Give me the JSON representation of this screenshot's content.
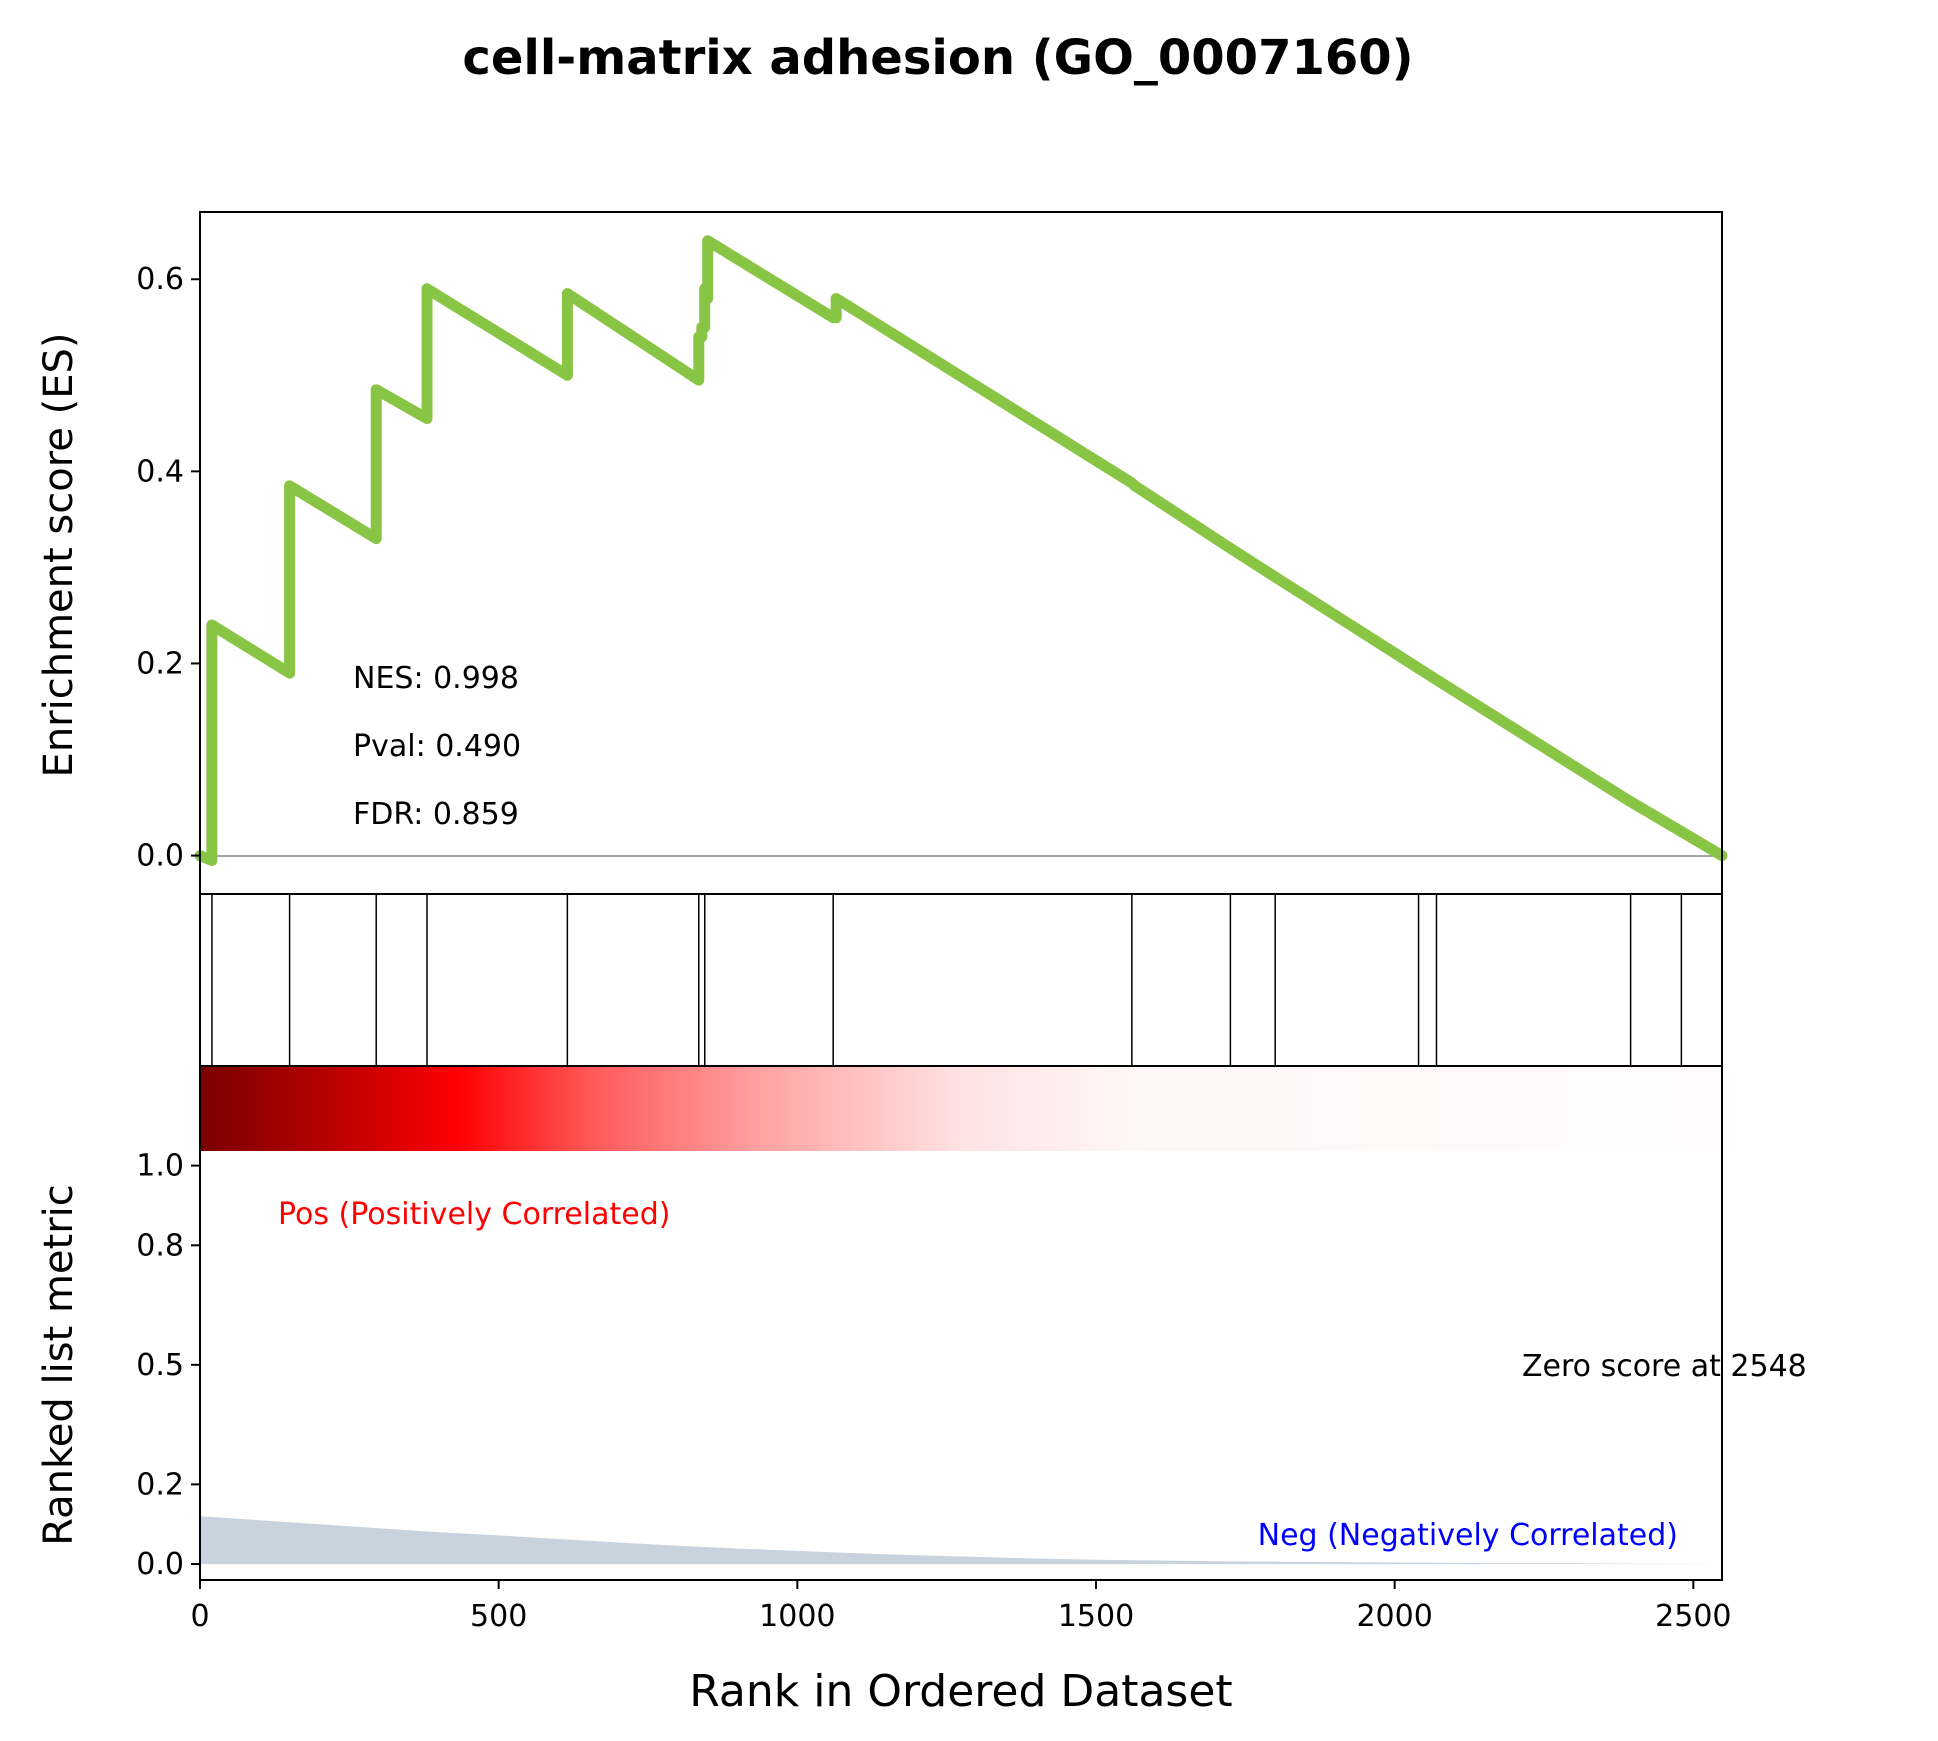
{
  "chart_data": {
    "type": "line",
    "title": "cell-matrix adhesion (GO_0007160)",
    "xlabel": "Rank in Ordered Dataset",
    "xlim": [
      0,
      2548
    ],
    "x_ticks": [
      "0",
      "500",
      "1000",
      "1500",
      "2000",
      "2500"
    ],
    "colors": {
      "es_line": "#88c544",
      "pos_label": "#ff0000",
      "neg_label": "#0000ff",
      "metric_fill": "#c9d3dd"
    },
    "es_panel": {
      "ylabel": "Enrichment score (ES)",
      "ylim": [
        -0.04,
        0.67
      ],
      "y_ticks": [
        "0.0",
        "0.2",
        "0.4",
        "0.6"
      ],
      "stats": {
        "nes": "NES: 0.998",
        "pval": "Pval: 0.490",
        "fdr": "FDR: 0.859"
      },
      "x": [
        0,
        20,
        20,
        150,
        150,
        295,
        295,
        380,
        380,
        615,
        615,
        835,
        835,
        840,
        840,
        845,
        845,
        850,
        850,
        1060,
        1060,
        1065,
        1065,
        1560,
        1565,
        1720,
        1800,
        2040,
        2070,
        2390,
        2480,
        2548
      ],
      "values": [
        0,
        -0.005,
        0.24,
        0.19,
        0.385,
        0.33,
        0.485,
        0.455,
        0.59,
        0.5,
        0.585,
        0.495,
        0.54,
        0.54,
        0.55,
        0.55,
        0.59,
        0.58,
        0.64,
        0.56,
        0.56,
        0.56,
        0.58,
        0.388,
        0.385,
        0.322,
        0.29,
        0.195,
        0.183,
        0.058,
        0.025,
        0
      ]
    },
    "hits_panel": {
      "hit_ranks": [
        20,
        150,
        295,
        380,
        615,
        835,
        845,
        1060,
        1560,
        1725,
        1800,
        2040,
        2070,
        2395,
        2480
      ]
    },
    "metric_panel": {
      "ylabel": "Ranked list metric",
      "ylim": [
        -0.04,
        1.25
      ],
      "y_ticks": [
        "0.0",
        "0.2",
        "0.5",
        "0.8",
        "1.0"
      ],
      "pos_label": "Pos (Positively Correlated)",
      "neg_label": "Neg (Negatively Correlated)",
      "zero_score_label": "Zero score at 2548",
      "x": [
        0,
        100,
        200,
        300,
        400,
        500,
        600,
        700,
        800,
        900,
        1000,
        1100,
        1200,
        1300,
        1400,
        1500,
        1600,
        1700,
        1800,
        1900,
        2000,
        2100,
        2200,
        2300,
        2400,
        2548
      ],
      "values": [
        0.12,
        0.11,
        0.1,
        0.09,
        0.08,
        0.072,
        0.063,
        0.054,
        0.046,
        0.039,
        0.033,
        0.027,
        0.022,
        0.018,
        0.014,
        0.011,
        0.009,
        0.007,
        0.006,
        0.005,
        0.004,
        0.003,
        0.002,
        0.002,
        0.001,
        0.0
      ]
    }
  }
}
